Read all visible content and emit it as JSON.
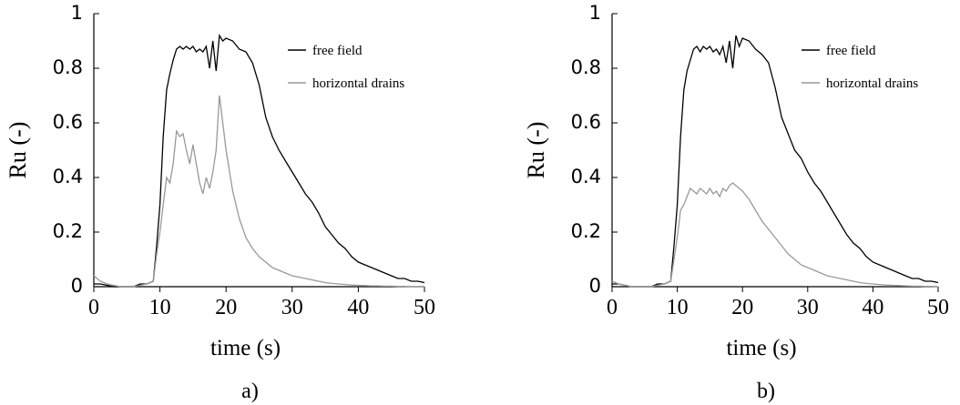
{
  "chart_data": [
    {
      "type": "line",
      "caption": "a)",
      "xlabel": "time (s)",
      "ylabel": "Ru (-)",
      "xlim": [
        0,
        50
      ],
      "xticks": [
        0,
        10,
        20,
        30,
        40,
        50
      ],
      "ylim": [
        0,
        1
      ],
      "yticks": [
        0,
        0.2,
        0.4,
        0.6,
        0.8,
        1
      ],
      "legend": "upper right",
      "x": [
        0,
        1,
        2,
        3,
        4,
        5,
        6,
        7,
        8,
        9,
        9.5,
        10,
        10.5,
        11,
        11.5,
        12,
        12.5,
        13,
        13.5,
        14,
        14.5,
        15,
        15.5,
        16,
        16.5,
        17,
        17.5,
        18,
        18.5,
        19,
        19.5,
        20,
        21,
        22,
        23,
        24,
        25,
        26,
        27,
        28,
        29,
        30,
        31,
        32,
        33,
        34,
        35,
        36,
        37,
        38,
        39,
        40,
        41,
        42,
        43,
        44,
        45,
        46,
        47,
        48,
        49,
        50
      ],
      "series": [
        {
          "name": "free field",
          "color": "#000000",
          "values": [
            0.01,
            0.01,
            0.005,
            0,
            0,
            0,
            0,
            0.01,
            0.01,
            0.02,
            0.15,
            0.3,
            0.55,
            0.72,
            0.78,
            0.83,
            0.87,
            0.88,
            0.87,
            0.88,
            0.87,
            0.88,
            0.86,
            0.87,
            0.86,
            0.88,
            0.8,
            0.9,
            0.79,
            0.92,
            0.9,
            0.91,
            0.9,
            0.87,
            0.86,
            0.82,
            0.74,
            0.62,
            0.55,
            0.5,
            0.46,
            0.42,
            0.38,
            0.34,
            0.31,
            0.27,
            0.22,
            0.19,
            0.16,
            0.14,
            0.11,
            0.09,
            0.08,
            0.07,
            0.06,
            0.05,
            0.04,
            0.03,
            0.03,
            0.02,
            0.02,
            0.015
          ]
        },
        {
          "name": "horizontal drains",
          "color": "#999999",
          "values": [
            0.04,
            0.02,
            0.01,
            0.005,
            0,
            0,
            0,
            0.005,
            0.01,
            0.02,
            0.12,
            0.2,
            0.3,
            0.4,
            0.38,
            0.45,
            0.57,
            0.55,
            0.56,
            0.5,
            0.45,
            0.52,
            0.45,
            0.38,
            0.34,
            0.4,
            0.36,
            0.42,
            0.5,
            0.7,
            0.6,
            0.5,
            0.35,
            0.25,
            0.18,
            0.14,
            0.11,
            0.09,
            0.07,
            0.06,
            0.05,
            0.04,
            0.035,
            0.03,
            0.025,
            0.02,
            0.015,
            0.012,
            0.01,
            0.008,
            0.006,
            0.005,
            0.004,
            0.003,
            0.003,
            0.002,
            0.002,
            0.001,
            0.001,
            0,
            0,
            0
          ]
        }
      ]
    },
    {
      "type": "line",
      "caption": "b)",
      "xlabel": "time (s)",
      "ylabel": "Ru (-)",
      "xlim": [
        0,
        50
      ],
      "xticks": [
        0,
        10,
        20,
        30,
        40,
        50
      ],
      "ylim": [
        0,
        1
      ],
      "yticks": [
        0,
        0.2,
        0.4,
        0.6,
        0.8,
        1
      ],
      "legend": "upper right",
      "x": [
        0,
        1,
        2,
        3,
        4,
        5,
        6,
        7,
        8,
        9,
        9.5,
        10,
        10.5,
        11,
        11.5,
        12,
        12.5,
        13,
        13.5,
        14,
        14.5,
        15,
        15.5,
        16,
        16.5,
        17,
        17.5,
        18,
        18.5,
        19,
        19.5,
        20,
        21,
        22,
        23,
        24,
        25,
        26,
        27,
        28,
        29,
        30,
        31,
        32,
        33,
        34,
        35,
        36,
        37,
        38,
        39,
        40,
        41,
        42,
        43,
        44,
        45,
        46,
        47,
        48,
        49,
        50
      ],
      "series": [
        {
          "name": "free field",
          "color": "#000000",
          "values": [
            0.01,
            0.01,
            0.005,
            0,
            0,
            0,
            0,
            0.01,
            0.01,
            0.02,
            0.15,
            0.3,
            0.55,
            0.72,
            0.79,
            0.83,
            0.87,
            0.88,
            0.86,
            0.88,
            0.87,
            0.88,
            0.86,
            0.87,
            0.85,
            0.88,
            0.82,
            0.9,
            0.8,
            0.92,
            0.88,
            0.91,
            0.9,
            0.87,
            0.85,
            0.82,
            0.73,
            0.62,
            0.56,
            0.5,
            0.47,
            0.42,
            0.38,
            0.35,
            0.31,
            0.27,
            0.23,
            0.19,
            0.16,
            0.14,
            0.11,
            0.09,
            0.08,
            0.07,
            0.06,
            0.05,
            0.04,
            0.03,
            0.03,
            0.02,
            0.02,
            0.015
          ]
        },
        {
          "name": "horizontal drains",
          "color": "#999999",
          "values": [
            0.02,
            0.01,
            0.005,
            0,
            0,
            0,
            0,
            0.005,
            0.01,
            0.02,
            0.1,
            0.18,
            0.28,
            0.3,
            0.33,
            0.36,
            0.35,
            0.34,
            0.36,
            0.35,
            0.34,
            0.36,
            0.34,
            0.35,
            0.33,
            0.36,
            0.35,
            0.37,
            0.38,
            0.37,
            0.36,
            0.35,
            0.32,
            0.28,
            0.24,
            0.21,
            0.18,
            0.15,
            0.12,
            0.1,
            0.08,
            0.07,
            0.06,
            0.05,
            0.04,
            0.035,
            0.03,
            0.025,
            0.02,
            0.015,
            0.012,
            0.01,
            0.008,
            0.006,
            0.005,
            0.004,
            0.003,
            0.002,
            0.002,
            0.001,
            0.001,
            0
          ]
        }
      ]
    }
  ]
}
